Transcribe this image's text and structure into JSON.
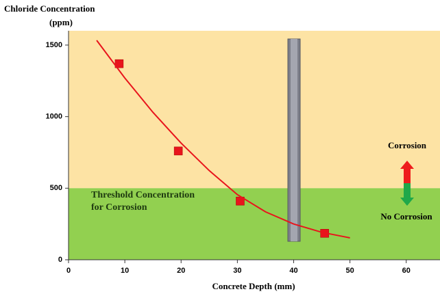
{
  "chart_data": {
    "type": "scatter",
    "title": "Chloride Concentration",
    "subtitle": "(ppm)",
    "x_label": "Concrete Depth (mm)",
    "xlim": [
      0,
      66
    ],
    "xticks": [
      0,
      10,
      20,
      30,
      40,
      50,
      60
    ],
    "ylim": [
      0,
      1600
    ],
    "yticks": [
      0,
      500,
      1000,
      1500
    ],
    "threshold": 500,
    "region_colors": {
      "above": "#fde3a4",
      "below": "#92d050"
    },
    "annotations": {
      "threshold": [
        "Threshold Concentration",
        "for Corrosion"
      ],
      "above": "Corrosion",
      "below": "No Corrosion"
    },
    "series": [
      {
        "kind": "points",
        "color": "#e8141c",
        "x": [
          9,
          19.5,
          30.5,
          45.5
        ],
        "values": [
          1370,
          760,
          410,
          185
        ]
      },
      {
        "kind": "curve",
        "color": "#e8141c",
        "x": [
          5,
          10,
          15,
          20,
          25,
          30,
          35,
          40,
          45,
          50
        ],
        "values": [
          1533,
          1270,
          1030,
          815,
          623,
          455,
          335,
          250,
          192,
          153
        ]
      }
    ]
  }
}
